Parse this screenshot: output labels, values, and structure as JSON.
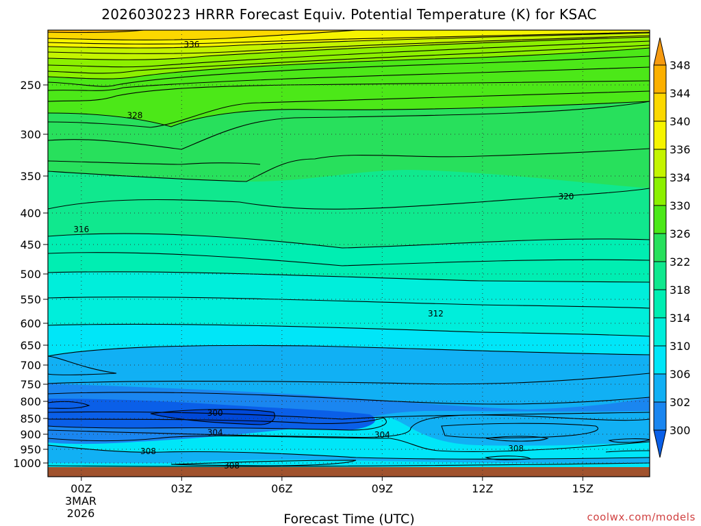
{
  "chart_data": {
    "type": "heatmap",
    "subtype": "time-height filled contour (forecast sounding cross-section)",
    "title": "2026030223 HRRR Forecast Equiv. Potential Temperature (K) for KSAC",
    "xlabel": "Forecast Time (UTC)",
    "ylabel": "",
    "credit": "coolwx.com/models",
    "x_ticks": [
      "00Z",
      "03Z",
      "06Z",
      "09Z",
      "12Z",
      "15Z"
    ],
    "x_tick_hours": [
      0,
      3,
      6,
      9,
      12,
      15
    ],
    "x_date_label": [
      "3MAR",
      "2026"
    ],
    "xlim_hours": [
      -1,
      17
    ],
    "y_ticks_hpa": [
      250,
      300,
      350,
      400,
      450,
      500,
      550,
      600,
      650,
      700,
      750,
      800,
      850,
      900,
      950,
      1000
    ],
    "y_scale": "pressure (hPa), upward decreasing",
    "ylim_hpa": [
      1010,
      200
    ],
    "grid": "dotted horizontal at pressure ticks, dotted vertical at time ticks",
    "colorbar": {
      "position": "right",
      "levels": [
        300,
        302,
        306,
        310,
        314,
        318,
        322,
        326,
        330,
        334,
        336,
        340,
        344,
        348
      ],
      "colors": [
        "#0a5fe8",
        "#1a86f0",
        "#11b0f4",
        "#00e6f8",
        "#00eedb",
        "#00eeb2",
        "#10e88e",
        "#28e05c",
        "#4ce818",
        "#8cf000",
        "#c4f400",
        "#f6f400",
        "#fcd800",
        "#fcb000",
        "#f69a10"
      ]
    },
    "contour_labels": [
      {
        "value": 336,
        "hour": 3.3,
        "hpa": 213
      },
      {
        "value": 328,
        "hour": 1.6,
        "hpa": 281
      },
      {
        "value": 320,
        "hour": 14.5,
        "hpa": 378
      },
      {
        "value": 316,
        "hour": 0.0,
        "hpa": 426
      },
      {
        "value": 312,
        "hour": 10.6,
        "hpa": 580
      },
      {
        "value": 300,
        "hour": 4.0,
        "hpa": 834
      },
      {
        "value": 304,
        "hour": 4.0,
        "hpa": 895
      },
      {
        "value": 304,
        "hour": 9.0,
        "hpa": 902
      },
      {
        "value": 308,
        "hour": 2.0,
        "hpa": 957
      },
      {
        "value": 308,
        "hour": 13.0,
        "hpa": 948
      },
      {
        "value": 308,
        "hour": 4.5,
        "hpa": 1002
      }
    ],
    "profiles": {
      "note": "Approximate theta-e (K) vs pressure read from the filled contours at selected forecast hours",
      "hpa": [
        1000,
        950,
        900,
        850,
        800,
        750,
        700,
        650,
        600,
        550,
        500,
        450,
        400,
        350,
        300,
        250,
        200
      ],
      "series": [
        {
          "hour": 0,
          "theta_e": [
            312,
            310,
            305,
            302,
            301,
            306,
            310,
            311,
            312,
            313,
            315,
            317,
            319,
            321,
            325,
            330,
            344
          ]
        },
        {
          "hour": 6,
          "theta_e": [
            310,
            309,
            305,
            301,
            304,
            307,
            309,
            310,
            311,
            313,
            315,
            317,
            319,
            324,
            326,
            330,
            340
          ]
        },
        {
          "hour": 12,
          "theta_e": [
            309,
            309,
            309,
            309,
            309,
            308,
            309,
            310,
            311,
            313,
            315,
            317,
            319,
            322,
            325,
            328,
            334
          ]
        },
        {
          "hour": 17,
          "theta_e": [
            309,
            310,
            309,
            309,
            309,
            309,
            309,
            310,
            311,
            313,
            315,
            317,
            319,
            322,
            325,
            328,
            332
          ]
        }
      ]
    },
    "surface_fill_color": "#a0522d"
  }
}
